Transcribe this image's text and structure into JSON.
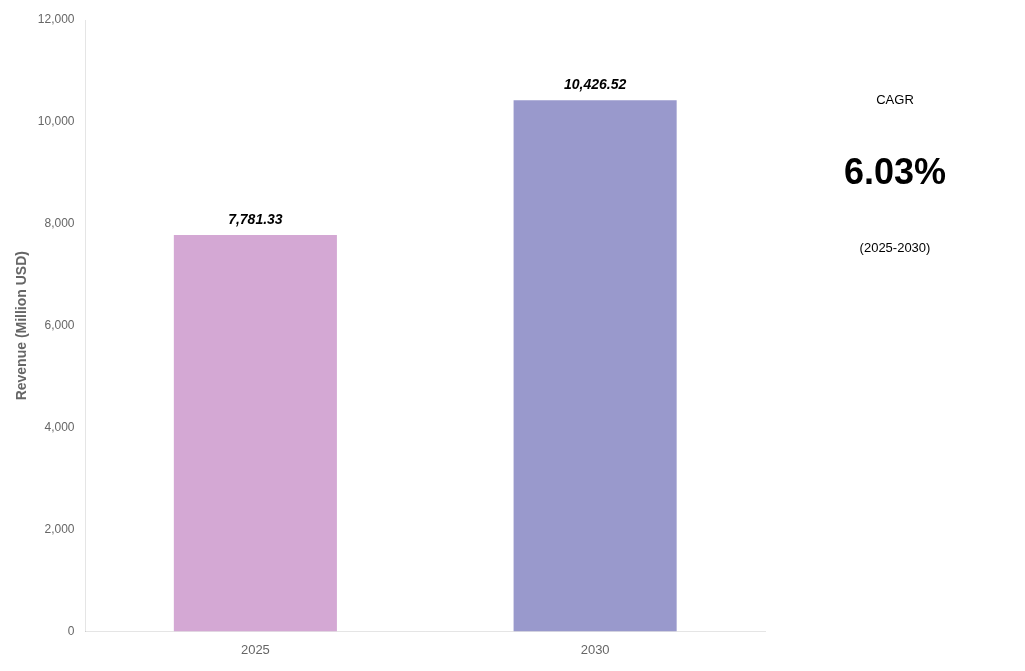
{
  "chart_data": {
    "type": "bar",
    "categories": [
      "2025",
      "2030"
    ],
    "values": [
      7781.33,
      10426.52
    ],
    "value_labels": [
      "7,781.33",
      "10,426.52"
    ],
    "data_labels": true,
    "colors": [
      "#d4a8d4",
      "#9999cc"
    ],
    "ylabel": "Revenue (Million USD)",
    "ylim": [
      0,
      12000
    ],
    "yticks": [
      0,
      {
        "value": 2000,
        "label": "2,000"
      },
      {
        "value": 4000,
        "label": "4,000"
      },
      {
        "value": 6000,
        "label": "6,000"
      },
      {
        "value": 8000,
        "label": "8,000"
      },
      {
        "value": 10000,
        "label": "10,000"
      },
      {
        "value": 12000,
        "label": "12,000"
      }
    ],
    "annotations": [
      "CAGR",
      "6.03%",
      "(2025-2030)"
    ],
    "grid": false,
    "legend": false
  }
}
